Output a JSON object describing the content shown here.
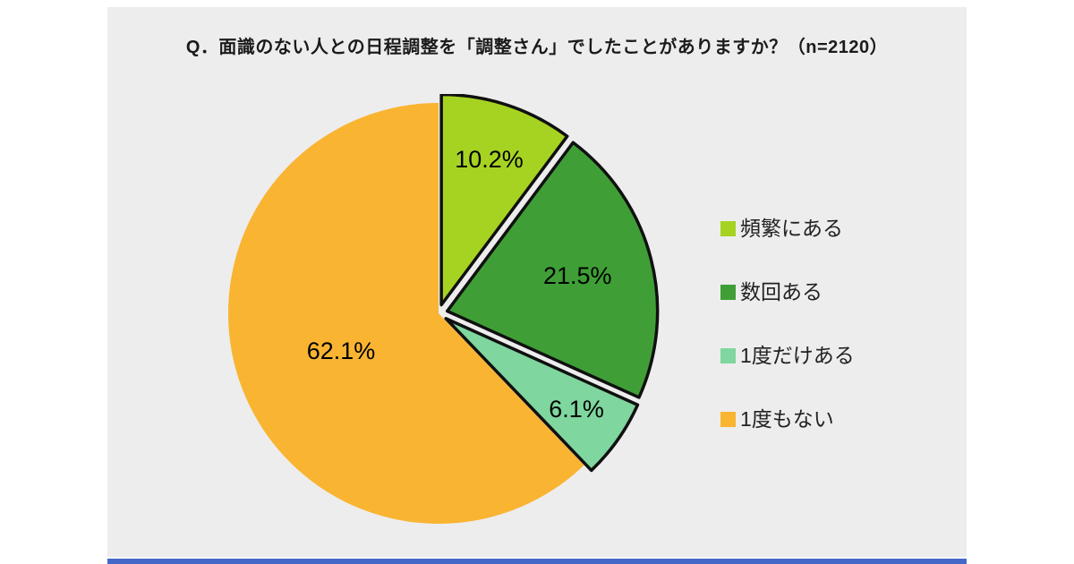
{
  "page": {
    "background_color": "#ffffff",
    "panel_background_color": "#ededed",
    "footer_bar_color": "#4468c8"
  },
  "chart_data": {
    "type": "pie",
    "title": "Q．面識のない人との日程調整を「調整さん」でしたことがありますか？（n=2120）",
    "sample_size_label": "n=2120",
    "start_angle": "top",
    "direction": "clockwise",
    "legend_position": "right",
    "label_color": "#000000",
    "outline_color": "#101010",
    "slices": [
      {
        "label": "頻繁にある",
        "value": 10.2,
        "display": "10.2%",
        "color": "#a6d322",
        "exploded": true
      },
      {
        "label": "数回ある",
        "value": 21.5,
        "display": "21.5%",
        "color": "#3f9f36",
        "exploded": true
      },
      {
        "label": "1度だけある",
        "value": 6.1,
        "display": "6.1%",
        "color": "#7fd69e",
        "exploded": true
      },
      {
        "label": "1度もない",
        "value": 62.1,
        "display": "62.1%",
        "color": "#f9b432",
        "exploded": false
      }
    ]
  }
}
